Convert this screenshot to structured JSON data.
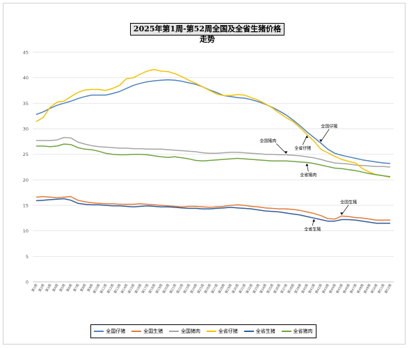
{
  "chart_data": {
    "type": "line",
    "title": "2025年第1周-第52周全国及全省生猪价格走势",
    "ylim": [
      0,
      45
    ],
    "yticks": [
      0,
      5,
      10,
      15,
      20,
      25,
      30,
      35,
      40,
      45
    ],
    "grid": true,
    "legend_position": "bottom",
    "categories": [
      "第1周",
      "第2周",
      "第3周",
      "第4周",
      "第5周",
      "第6周",
      "第7周",
      "第8周",
      "第9周",
      "第10周",
      "第11周",
      "第12周",
      "第13周",
      "第14周",
      "第15周",
      "第16周",
      "第17周",
      "第18周",
      "第19周",
      "第20周",
      "第21周",
      "第22周",
      "第23周",
      "第24周",
      "第25周",
      "第26周",
      "第27周",
      "第28周",
      "第29周",
      "第30周",
      "第31周",
      "第32周",
      "第33周",
      "第34周",
      "第35周",
      "第36周",
      "第37周",
      "第38周",
      "第39周",
      "第40周",
      "第41周",
      "第42周",
      "第43周",
      "第44周",
      "第45周",
      "第46周",
      "第47周",
      "第48周",
      "第49周",
      "第50周",
      "第51周",
      "第52周"
    ],
    "series": [
      {
        "name": "全国仔猪",
        "color": "#4f81bd",
        "values": [
          32.8,
          33.3,
          34.0,
          34.6,
          35.0,
          35.4,
          35.9,
          36.3,
          36.6,
          36.6,
          36.6,
          36.9,
          37.3,
          37.9,
          38.5,
          38.9,
          39.2,
          39.4,
          39.5,
          39.6,
          39.5,
          39.3,
          39.0,
          38.7,
          38.2,
          37.6,
          37.1,
          36.5,
          36.3,
          36.1,
          36.0,
          35.7,
          35.3,
          34.8,
          34.2,
          33.5,
          32.7,
          31.7,
          30.6,
          29.4,
          28.3,
          27.2,
          26.0,
          25.2,
          24.8,
          24.5,
          24.2,
          23.9,
          23.7,
          23.5,
          23.3,
          23.2
        ]
      },
      {
        "name": "全国生猪",
        "color": "#e07b39",
        "values": [
          16.6,
          16.7,
          16.6,
          16.5,
          16.6,
          16.7,
          16.0,
          15.7,
          15.5,
          15.4,
          15.3,
          15.3,
          15.2,
          15.2,
          15.2,
          15.3,
          15.2,
          15.1,
          15.0,
          14.9,
          14.8,
          14.7,
          14.8,
          14.8,
          14.7,
          14.6,
          14.7,
          14.8,
          15.0,
          15.1,
          15.0,
          14.8,
          14.7,
          14.5,
          14.4,
          14.3,
          14.3,
          14.2,
          14.0,
          13.7,
          13.4,
          13.0,
          12.4,
          12.3,
          12.9,
          12.8,
          12.6,
          12.5,
          12.3,
          12.1,
          12.1,
          12.1
        ]
      },
      {
        "name": "全国猪肉",
        "color": "#a5a5a5",
        "values": [
          27.7,
          27.7,
          27.7,
          27.8,
          28.3,
          28.2,
          27.4,
          27.0,
          26.7,
          26.5,
          26.4,
          26.3,
          26.2,
          26.2,
          26.1,
          26.1,
          26.0,
          26.0,
          26.0,
          25.9,
          25.8,
          25.7,
          25.6,
          25.5,
          25.3,
          25.2,
          25.2,
          25.3,
          25.4,
          25.4,
          25.3,
          25.2,
          25.1,
          25.0,
          25.0,
          24.9,
          24.9,
          24.8,
          24.7,
          24.5,
          24.3,
          24.0,
          23.6,
          23.3,
          23.2,
          23.1,
          22.9,
          22.8,
          22.7,
          22.6,
          22.6,
          22.5
        ]
      },
      {
        "name": "全省仔猪",
        "color": "#f2c200",
        "values": [
          31.4,
          32.2,
          34.2,
          35.2,
          35.4,
          36.3,
          37.1,
          37.6,
          37.7,
          37.7,
          37.5,
          37.9,
          38.5,
          39.8,
          40.0,
          40.7,
          41.3,
          41.6,
          41.3,
          41.2,
          40.8,
          40.2,
          39.5,
          38.9,
          38.2,
          37.5,
          36.8,
          36.5,
          36.5,
          36.7,
          36.6,
          36.1,
          35.6,
          34.9,
          34.1,
          33.1,
          32.2,
          31.4,
          30.2,
          28.9,
          27.6,
          26.0,
          25.3,
          24.6,
          24.0,
          23.6,
          23.3,
          22.2,
          21.5,
          21.0,
          20.8,
          20.5
        ]
      },
      {
        "name": "全省生猪",
        "color": "#2e5c9a",
        "values": [
          15.9,
          16.0,
          16.1,
          16.2,
          16.3,
          16.0,
          15.4,
          15.2,
          15.1,
          15.1,
          15.0,
          14.9,
          14.9,
          14.8,
          14.7,
          14.8,
          14.9,
          14.8,
          14.7,
          14.7,
          14.6,
          14.5,
          14.4,
          14.4,
          14.3,
          14.3,
          14.4,
          14.5,
          14.6,
          14.5,
          14.4,
          14.3,
          14.1,
          13.9,
          13.8,
          13.7,
          13.5,
          13.3,
          13.1,
          12.8,
          12.5,
          12.2,
          11.9,
          11.9,
          12.2,
          12.2,
          12.1,
          11.9,
          11.7,
          11.5,
          11.5,
          11.5
        ]
      },
      {
        "name": "全省猪肉",
        "color": "#70a340",
        "values": [
          26.6,
          26.6,
          26.5,
          26.6,
          27.0,
          26.9,
          26.3,
          26.0,
          25.9,
          25.6,
          25.2,
          25.0,
          24.9,
          24.9,
          25.0,
          25.0,
          24.9,
          24.7,
          24.5,
          24.4,
          24.5,
          24.3,
          24.1,
          23.8,
          23.7,
          23.8,
          23.9,
          24.0,
          24.1,
          24.2,
          24.1,
          24.0,
          23.9,
          23.8,
          23.7,
          23.7,
          23.7,
          23.6,
          23.5,
          23.4,
          23.2,
          22.9,
          22.6,
          22.3,
          22.2,
          22.0,
          21.8,
          21.5,
          21.2,
          21.0,
          20.8,
          20.6
        ]
      }
    ],
    "annotations": [
      {
        "text": "全国猪肉",
        "series": "全国猪肉",
        "at_week": "第37周"
      },
      {
        "text": "全省仔猪",
        "series": "全省仔猪",
        "at_week": "第40周"
      },
      {
        "text": "全国仔猪",
        "series": "全国仔猪",
        "at_week": "第42周"
      },
      {
        "text": "全省猪肉",
        "series": "全省猪肉",
        "at_week": "第40周"
      },
      {
        "text": "全国生猪",
        "series": "全国生猪",
        "at_week": "第45周"
      },
      {
        "text": "全省生猪",
        "series": "全省生猪",
        "at_week": "第41周"
      }
    ]
  }
}
